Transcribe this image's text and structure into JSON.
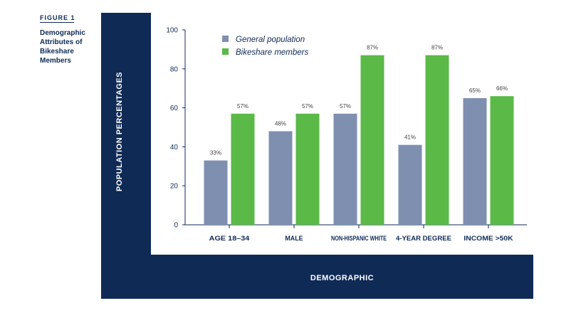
{
  "figure": {
    "label": "FIGURE 1",
    "caption_lines": [
      "Demographic",
      "Attributes of",
      "Bikeshare",
      "Members"
    ]
  },
  "colors": {
    "frame": "#0f2a55",
    "general": "#7f8fb0",
    "bikeshare": "#5ab947"
  },
  "chart_data": {
    "type": "bar",
    "title": "Demographic Attributes of Bikeshare Members",
    "xlabel": "DEMOGRAPHIC",
    "ylabel": "POPULATION PERCENTAGES",
    "ylim": [
      0,
      100
    ],
    "yticks": [
      "0",
      "20",
      "40",
      "60",
      "80",
      "100"
    ],
    "categories": [
      "AGE 18–34",
      "MALE",
      "NON-HISPANIC WHITE",
      "4-YEAR DEGREE",
      "INCOME >50K"
    ],
    "series": [
      {
        "name": "General population",
        "values": [
          33,
          48,
          57,
          41,
          65
        ],
        "labels": [
          "33%",
          "48%",
          "57%",
          "41%",
          "65%"
        ]
      },
      {
        "name": "Bikeshare members",
        "values": [
          57,
          57,
          87,
          87,
          66
        ],
        "labels": [
          "57%",
          "57%",
          "87%",
          "87%",
          "66%"
        ]
      }
    ],
    "legend": "top-left"
  }
}
